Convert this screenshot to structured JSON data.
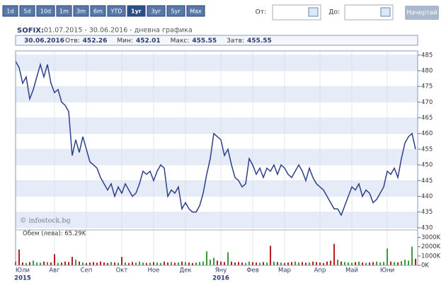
{
  "toolbar": {
    "buttons": [
      "1d",
      "5d",
      "10d",
      "1m",
      "3m",
      "6m",
      "YTD",
      "1уг",
      "3уг",
      "5уг",
      "Max"
    ],
    "active": 7,
    "from_label": "От:",
    "to_label": "До:",
    "submit": "Начертай"
  },
  "chart_data": [
    {
      "type": "line",
      "title": "SOFIX:",
      "subtitle": "01.07.2015 - 30.06.2016 - дневна графика",
      "info": {
        "date": "30.06.2016",
        "fields": [
          {
            "label": "Отв:",
            "value": 452.26
          },
          {
            "label": "Мин:",
            "value": 452.01
          },
          {
            "label": "Макс:",
            "value": 455.55
          },
          {
            "label": "Затв:",
            "value": 455.55
          }
        ]
      },
      "watermark": "© infostock.bg",
      "color": "#2e3f8a",
      "values": [
        483,
        481,
        476,
        478,
        471,
        474,
        478,
        482,
        478,
        482,
        476,
        473,
        474,
        470,
        469,
        467,
        453,
        458,
        454,
        459,
        455,
        451,
        450,
        449,
        446,
        444,
        442,
        444,
        440,
        443,
        441,
        444,
        442,
        440,
        441,
        444,
        448,
        447,
        448,
        445,
        448,
        450,
        449,
        440,
        442,
        441,
        443,
        436,
        438,
        436,
        435,
        435,
        437,
        441,
        447,
        452,
        460,
        459,
        458,
        453,
        455,
        450,
        446,
        445,
        443,
        444,
        452,
        450,
        447,
        449,
        446,
        449,
        448,
        450,
        447,
        450,
        449,
        447,
        446,
        448,
        450,
        448,
        445,
        449,
        446,
        444,
        443,
        442,
        440,
        438,
        436,
        436,
        434,
        437,
        440,
        443,
        442,
        444,
        440,
        442,
        441,
        438,
        439,
        441,
        443,
        448,
        447,
        449,
        446,
        452,
        457,
        459,
        460,
        455
      ],
      "xlim": [
        0,
        113
      ],
      "xticks": [
        {
          "value": 0,
          "label": "Юли"
        },
        {
          "value": 11,
          "label": "Авг"
        },
        {
          "value": 20,
          "label": "Сеп"
        },
        {
          "value": 30,
          "label": "Окт"
        },
        {
          "value": 39,
          "label": "Ное"
        },
        {
          "value": 48,
          "label": "Дек"
        },
        {
          "value": 58,
          "label": "Яну"
        },
        {
          "value": 67,
          "label": "Фев"
        },
        {
          "value": 76,
          "label": "Мар"
        },
        {
          "value": 86,
          "label": "Апр"
        },
        {
          "value": 95,
          "label": "Май"
        },
        {
          "value": 105,
          "label": "Юни"
        }
      ],
      "year_labels": [
        {
          "value": 0,
          "label": "2015"
        },
        {
          "value": 58,
          "label": "2016"
        }
      ],
      "ylim": [
        429.3,
        486.3
      ],
      "yticks": [
        430,
        435,
        440,
        445,
        450,
        455,
        460,
        465,
        470,
        475,
        480,
        485
      ],
      "grid": true
    },
    {
      "type": "bar",
      "title": "Обем (лева): 65.29K",
      "up_color": "#3a9a3a",
      "down_color": "#b41e1e",
      "values": [
        400,
        1700,
        300,
        250,
        350,
        500,
        300,
        280,
        400,
        350,
        300,
        1200,
        250,
        300,
        400,
        350,
        900,
        600,
        400,
        300,
        250,
        300,
        350,
        280,
        400,
        300,
        250,
        350,
        300,
        280,
        900,
        300,
        250,
        350,
        300,
        400,
        300,
        250,
        280,
        350,
        300,
        250,
        400,
        300,
        350,
        280,
        300,
        400,
        350,
        300,
        250,
        300,
        350,
        400,
        1500,
        600,
        800,
        500,
        400,
        350,
        1400,
        400,
        300,
        350,
        300,
        250,
        400,
        350,
        300,
        280,
        350,
        300,
        2100,
        400,
        350,
        300,
        250,
        300,
        350,
        400,
        300,
        350,
        280,
        300,
        400,
        350,
        300,
        250,
        400,
        500,
        2300,
        600,
        400,
        350,
        300,
        280,
        350,
        400,
        300,
        250,
        300,
        350,
        400,
        300,
        350,
        1800,
        400,
        350,
        300,
        450,
        600,
        500,
        2000,
        700
      ],
      "ylim": [
        0,
        3500
      ],
      "yticks": [
        {
          "value": 0,
          "label": "0K"
        },
        {
          "value": 1000,
          "label": "1000K"
        },
        {
          "value": 2000,
          "label": "2000K"
        },
        {
          "value": 3000,
          "label": "3000K"
        }
      ]
    }
  ]
}
